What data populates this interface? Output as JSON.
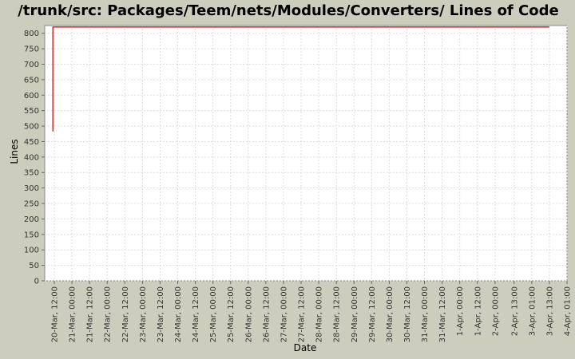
{
  "chart_data": {
    "type": "line",
    "title": "/trunk/src: Packages/Teem/nets/Modules/Converters/ Lines of Code",
    "xlabel": "Date",
    "ylabel": "Lines",
    "ylim": [
      0,
      825
    ],
    "y_ticks": [
      0,
      50,
      100,
      150,
      200,
      250,
      300,
      350,
      400,
      450,
      500,
      550,
      600,
      650,
      700,
      750,
      800
    ],
    "x_ticks": [
      "20-Mar, 12:00",
      "21-Mar, 00:00",
      "21-Mar, 12:00",
      "22-Mar, 00:00",
      "22-Mar, 12:00",
      "23-Mar, 00:00",
      "23-Mar, 12:00",
      "24-Mar, 00:00",
      "24-Mar, 12:00",
      "25-Mar, 00:00",
      "25-Mar, 12:00",
      "26-Mar, 00:00",
      "26-Mar, 12:00",
      "27-Mar, 00:00",
      "27-Mar, 12:00",
      "28-Mar, 00:00",
      "28-Mar, 12:00",
      "29-Mar, 00:00",
      "29-Mar, 12:00",
      "30-Mar, 00:00",
      "30-Mar, 12:00",
      "31-Mar, 00:00",
      "31-Mar, 12:00",
      "1-Apr, 00:00",
      "1-Apr, 12:00",
      "2-Apr, 00:00",
      "2-Apr, 13:00",
      "3-Apr, 01:00",
      "3-Apr, 13:00",
      "4-Apr, 01:00"
    ],
    "grid": true,
    "series": [
      {
        "color": "#bb0000",
        "points": [
          {
            "x": "20-Mar, 11:00",
            "y": 483
          },
          {
            "x": "20-Mar, 11:00",
            "y": 820
          },
          {
            "x": "3-Apr, 13:00",
            "y": 820
          }
        ]
      }
    ]
  }
}
